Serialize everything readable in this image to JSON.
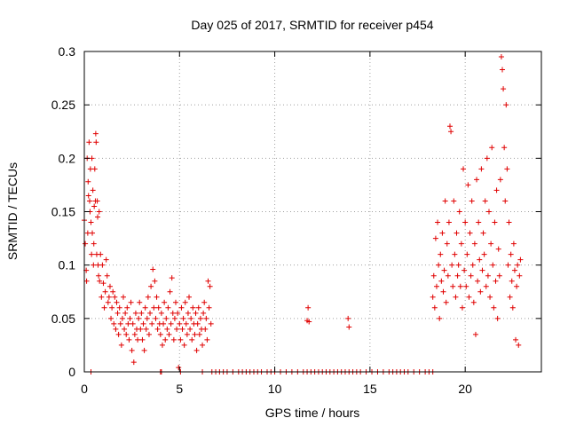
{
  "chart_data": {
    "type": "scatter",
    "title": "Day 025 of 2017, SRMTID for receiver p454",
    "xlabel": "GPS time / hours",
    "ylabel": "SRMTID / TECUs",
    "xlim": [
      0,
      24
    ],
    "ylim": [
      0,
      0.3
    ],
    "xticks": [
      0,
      5,
      10,
      15,
      20
    ],
    "xtick_labels": [
      "0",
      "5",
      "10",
      "15",
      "20"
    ],
    "yticks": [
      0,
      0.05,
      0.1,
      0.15,
      0.2,
      0.25,
      0.3
    ],
    "ytick_labels": [
      "0",
      "0.05",
      "0.1",
      "0.15",
      "0.2",
      "0.25",
      "0.3"
    ],
    "grid": true,
    "marker": "+",
    "color": "#e00000",
    "series": [
      {
        "name": "SRMTID",
        "points": [
          [
            0.0,
            0.142
          ],
          [
            0.05,
            0.12
          ],
          [
            0.1,
            0.095
          ],
          [
            0.12,
            0.085
          ],
          [
            0.15,
            0.2
          ],
          [
            0.18,
            0.13
          ],
          [
            0.2,
            0.178
          ],
          [
            0.22,
            0.165
          ],
          [
            0.25,
            0.215
          ],
          [
            0.28,
            0.16
          ],
          [
            0.3,
            0.15
          ],
          [
            0.32,
            0.19
          ],
          [
            0.35,
            0.14
          ],
          [
            0.38,
            0.11
          ],
          [
            0.4,
            0.2
          ],
          [
            0.42,
            0.13
          ],
          [
            0.45,
            0.17
          ],
          [
            0.48,
            0.1
          ],
          [
            0.5,
            0.12
          ],
          [
            0.52,
            0.155
          ],
          [
            0.55,
            0.19
          ],
          [
            0.58,
            0.16
          ],
          [
            0.6,
            0.223
          ],
          [
            0.62,
            0.215
          ],
          [
            0.65,
            0.11
          ],
          [
            0.68,
            0.16
          ],
          [
            0.7,
            0.145
          ],
          [
            0.72,
            0.1
          ],
          [
            0.75,
            0.09
          ],
          [
            0.78,
            0.15
          ],
          [
            0.8,
            0.085
          ],
          [
            0.85,
            0.11
          ],
          [
            0.9,
            0.07
          ],
          [
            0.95,
            0.1
          ],
          [
            1.0,
            0.083
          ],
          [
            1.05,
            0.06
          ],
          [
            1.1,
            0.075
          ],
          [
            1.15,
            0.105
          ],
          [
            1.2,
            0.09
          ],
          [
            1.25,
            0.065
          ],
          [
            1.3,
            0.07
          ],
          [
            1.35,
            0.08
          ],
          [
            1.4,
            0.05
          ],
          [
            1.45,
            0.06
          ],
          [
            1.5,
            0.075
          ],
          [
            1.55,
            0.045
          ],
          [
            1.6,
            0.07
          ],
          [
            1.65,
            0.04
          ],
          [
            1.7,
            0.065
          ],
          [
            1.75,
            0.055
          ],
          [
            1.8,
            0.035
          ],
          [
            1.85,
            0.06
          ],
          [
            1.9,
            0.045
          ],
          [
            1.95,
            0.025
          ],
          [
            2.0,
            0.05
          ],
          [
            2.05,
            0.07
          ],
          [
            2.1,
            0.04
          ],
          [
            2.15,
            0.055
          ],
          [
            2.2,
            0.035
          ],
          [
            2.25,
            0.06
          ],
          [
            2.3,
            0.045
          ],
          [
            2.35,
            0.03
          ],
          [
            2.4,
            0.05
          ],
          [
            2.45,
            0.065
          ],
          [
            2.5,
            0.02
          ],
          [
            2.55,
            0.045
          ],
          [
            2.6,
            0.009
          ],
          [
            2.65,
            0.035
          ],
          [
            2.7,
            0.055
          ],
          [
            2.75,
            0.04
          ],
          [
            2.8,
            0.03
          ],
          [
            2.85,
            0.05
          ],
          [
            2.9,
            0.065
          ],
          [
            2.95,
            0.04
          ],
          [
            3.0,
            0.055
          ],
          [
            3.05,
            0.03
          ],
          [
            3.1,
            0.045
          ],
          [
            3.15,
            0.02
          ],
          [
            3.2,
            0.06
          ],
          [
            3.25,
            0.04
          ],
          [
            3.3,
            0.05
          ],
          [
            3.35,
            0.07
          ],
          [
            3.4,
            0.035
          ],
          [
            3.45,
            0.055
          ],
          [
            3.5,
            0.08
          ],
          [
            3.55,
            0.045
          ],
          [
            3.6,
            0.096
          ],
          [
            3.65,
            0.06
          ],
          [
            3.7,
            0.085
          ],
          [
            3.75,
            0.05
          ],
          [
            3.8,
            0.07
          ],
          [
            3.85,
            0.04
          ],
          [
            3.9,
            0.06
          ],
          [
            3.95,
            0.045
          ],
          [
            4.0,
            0.035
          ],
          [
            4.05,
            0.055
          ],
          [
            4.1,
            0.025
          ],
          [
            4.15,
            0.045
          ],
          [
            4.2,
            0.065
          ],
          [
            4.25,
            0.03
          ],
          [
            4.3,
            0.05
          ],
          [
            4.35,
            0.04
          ],
          [
            4.4,
            0.06
          ],
          [
            4.45,
            0.035
          ],
          [
            4.5,
            0.075
          ],
          [
            4.55,
            0.045
          ],
          [
            4.6,
            0.088
          ],
          [
            4.65,
            0.055
          ],
          [
            4.7,
            0.03
          ],
          [
            4.75,
            0.05
          ],
          [
            4.8,
            0.065
          ],
          [
            4.85,
            0.04
          ],
          [
            4.9,
            0.055
          ],
          [
            4.95,
            0.004
          ],
          [
            5.0,
            0.045
          ],
          [
            5.05,
            0.03
          ],
          [
            5.1,
            0.06
          ],
          [
            5.15,
            0.04
          ],
          [
            5.2,
            0.05
          ],
          [
            5.25,
            0.025
          ],
          [
            5.3,
            0.065
          ],
          [
            5.35,
            0.045
          ],
          [
            5.4,
            0.035
          ],
          [
            5.45,
            0.055
          ],
          [
            5.5,
            0.07
          ],
          [
            5.55,
            0.04
          ],
          [
            5.6,
            0.05
          ],
          [
            5.65,
            0.03
          ],
          [
            5.7,
            0.06
          ],
          [
            5.75,
            0.045
          ],
          [
            5.8,
            0.035
          ],
          [
            5.85,
            0.055
          ],
          [
            5.9,
            0.02
          ],
          [
            5.95,
            0.045
          ],
          [
            6.0,
            0.06
          ],
          [
            6.05,
            0.035
          ],
          [
            6.1,
            0.05
          ],
          [
            6.15,
            0.04
          ],
          [
            6.2,
            0.025
          ],
          [
            6.25,
            0.055
          ],
          [
            6.3,
            0.065
          ],
          [
            6.35,
            0.04
          ],
          [
            6.4,
            0.05
          ],
          [
            6.45,
            0.03
          ],
          [
            6.5,
            0.085
          ],
          [
            6.55,
            0.06
          ],
          [
            6.6,
            0.08
          ],
          [
            6.65,
            0.045
          ],
          [
            0.35,
            0.0
          ],
          [
            4.0,
            0.0
          ],
          [
            4.05,
            0.0
          ],
          [
            5.05,
            0.0
          ],
          [
            6.2,
            0.0
          ],
          [
            6.7,
            0.0
          ],
          [
            6.9,
            0.0
          ],
          [
            7.1,
            0.0
          ],
          [
            7.3,
            0.0
          ],
          [
            7.5,
            0.0
          ],
          [
            7.8,
            0.0
          ],
          [
            8.1,
            0.0
          ],
          [
            8.3,
            0.0
          ],
          [
            8.5,
            0.0
          ],
          [
            8.7,
            0.0
          ],
          [
            8.9,
            0.0
          ],
          [
            9.1,
            0.0
          ],
          [
            9.3,
            0.0
          ],
          [
            9.6,
            0.0
          ],
          [
            9.8,
            0.0
          ],
          [
            10.0,
            0.0
          ],
          [
            10.3,
            0.0
          ],
          [
            10.6,
            0.0
          ],
          [
            10.9,
            0.0
          ],
          [
            11.2,
            0.0
          ],
          [
            11.5,
            0.0
          ],
          [
            11.7,
            0.0
          ],
          [
            11.9,
            0.0
          ],
          [
            12.1,
            0.0
          ],
          [
            12.3,
            0.0
          ],
          [
            12.5,
            0.0
          ],
          [
            12.7,
            0.0
          ],
          [
            12.9,
            0.0
          ],
          [
            13.1,
            0.0
          ],
          [
            13.3,
            0.0
          ],
          [
            13.5,
            0.0
          ],
          [
            13.7,
            0.0
          ],
          [
            13.9,
            0.0
          ],
          [
            14.1,
            0.0
          ],
          [
            14.3,
            0.0
          ],
          [
            14.5,
            0.0
          ],
          [
            14.8,
            0.0
          ],
          [
            15.1,
            0.0
          ],
          [
            15.4,
            0.0
          ],
          [
            15.7,
            0.0
          ],
          [
            16.0,
            0.0
          ],
          [
            16.2,
            0.0
          ],
          [
            16.4,
            0.0
          ],
          [
            16.6,
            0.0
          ],
          [
            16.8,
            0.0
          ],
          [
            17.0,
            0.0
          ],
          [
            17.3,
            0.0
          ],
          [
            17.6,
            0.0
          ],
          [
            17.9,
            0.0
          ],
          [
            18.1,
            0.0
          ],
          [
            18.3,
            0.0
          ],
          [
            11.75,
            0.06
          ],
          [
            11.7,
            0.048
          ],
          [
            11.8,
            0.047
          ],
          [
            13.85,
            0.05
          ],
          [
            13.9,
            0.042
          ],
          [
            18.3,
            0.07
          ],
          [
            18.35,
            0.09
          ],
          [
            18.4,
            0.06
          ],
          [
            18.45,
            0.125
          ],
          [
            18.5,
            0.08
          ],
          [
            18.55,
            0.14
          ],
          [
            18.6,
            0.1
          ],
          [
            18.65,
            0.05
          ],
          [
            18.7,
            0.11
          ],
          [
            18.75,
            0.085
          ],
          [
            18.8,
            0.13
          ],
          [
            18.85,
            0.075
          ],
          [
            18.9,
            0.095
          ],
          [
            18.95,
            0.16
          ],
          [
            19.0,
            0.065
          ],
          [
            19.05,
            0.12
          ],
          [
            19.1,
            0.09
          ],
          [
            19.15,
            0.14
          ],
          [
            19.2,
            0.23
          ],
          [
            19.25,
            0.225
          ],
          [
            19.3,
            0.1
          ],
          [
            19.35,
            0.08
          ],
          [
            19.4,
            0.16
          ],
          [
            19.45,
            0.11
          ],
          [
            19.5,
            0.07
          ],
          [
            19.55,
            0.13
          ],
          [
            19.6,
            0.09
          ],
          [
            19.65,
            0.1
          ],
          [
            19.7,
            0.15
          ],
          [
            19.75,
            0.08
          ],
          [
            19.8,
            0.12
          ],
          [
            19.85,
            0.06
          ],
          [
            19.9,
            0.19
          ],
          [
            19.95,
            0.095
          ],
          [
            20.0,
            0.14
          ],
          [
            20.05,
            0.08
          ],
          [
            20.1,
            0.11
          ],
          [
            20.15,
            0.175
          ],
          [
            20.2,
            0.07
          ],
          [
            20.25,
            0.13
          ],
          [
            20.3,
            0.09
          ],
          [
            20.35,
            0.16
          ],
          [
            20.4,
            0.1
          ],
          [
            20.45,
            0.065
          ],
          [
            20.5,
            0.12
          ],
          [
            20.55,
            0.035
          ],
          [
            20.6,
            0.18
          ],
          [
            20.65,
            0.085
          ],
          [
            20.7,
            0.14
          ],
          [
            20.75,
            0.105
          ],
          [
            20.8,
            0.075
          ],
          [
            20.85,
            0.19
          ],
          [
            20.9,
            0.095
          ],
          [
            20.95,
            0.13
          ],
          [
            21.0,
            0.11
          ],
          [
            21.05,
            0.16
          ],
          [
            21.1,
            0.08
          ],
          [
            21.15,
            0.2
          ],
          [
            21.2,
            0.09
          ],
          [
            21.25,
            0.15
          ],
          [
            21.3,
            0.07
          ],
          [
            21.35,
            0.12
          ],
          [
            21.4,
            0.21
          ],
          [
            21.45,
            0.1
          ],
          [
            21.5,
            0.06
          ],
          [
            21.55,
            0.14
          ],
          [
            21.6,
            0.085
          ],
          [
            21.65,
            0.17
          ],
          [
            21.7,
            0.05
          ],
          [
            21.75,
            0.115
          ],
          [
            21.8,
            0.09
          ],
          [
            21.85,
            0.18
          ],
          [
            21.9,
            0.295
          ],
          [
            21.95,
            0.283
          ],
          [
            22.0,
            0.265
          ],
          [
            22.05,
            0.21
          ],
          [
            22.1,
            0.16
          ],
          [
            22.15,
            0.25
          ],
          [
            22.2,
            0.19
          ],
          [
            22.25,
            0.1
          ],
          [
            22.3,
            0.14
          ],
          [
            22.35,
            0.07
          ],
          [
            22.4,
            0.11
          ],
          [
            22.45,
            0.085
          ],
          [
            22.5,
            0.06
          ],
          [
            22.55,
            0.12
          ],
          [
            22.6,
            0.095
          ],
          [
            22.65,
            0.03
          ],
          [
            22.7,
            0.08
          ],
          [
            22.75,
            0.1
          ],
          [
            22.8,
            0.025
          ],
          [
            22.85,
            0.09
          ],
          [
            22.9,
            0.105
          ]
        ]
      }
    ]
  }
}
